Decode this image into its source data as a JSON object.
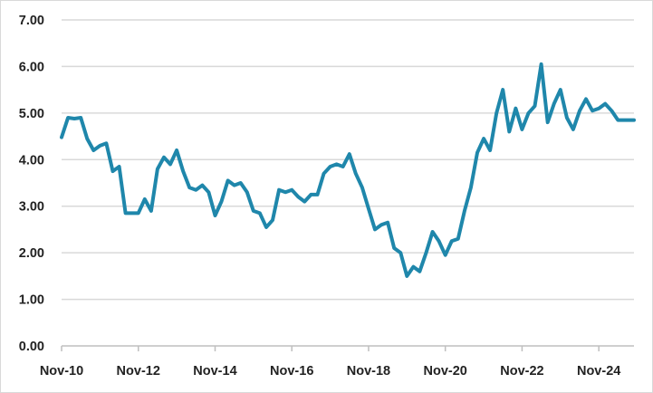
{
  "chart_data": {
    "type": "line",
    "title": "",
    "xlabel": "",
    "ylabel": "",
    "x_tick_labels": [
      "Nov-10",
      "Nov-12",
      "Nov-14",
      "Nov-16",
      "Nov-18",
      "Nov-20",
      "Nov-22",
      "Nov-24"
    ],
    "y_tick_labels": [
      "0.00",
      "1.00",
      "2.00",
      "3.00",
      "4.00",
      "5.00",
      "6.00",
      "7.00"
    ],
    "ylim": [
      0,
      7
    ],
    "xlim": [
      "2010-11",
      "2025-10"
    ],
    "grid": "horizontal",
    "legend": "none",
    "colors": {
      "line": "#1f87ab",
      "grid": "#d9d9d9",
      "axis": "#bfbfbf"
    },
    "series": [
      {
        "x": [
          "2010-11",
          "2011-01",
          "2011-03",
          "2011-05",
          "2011-07",
          "2011-09",
          "2011-11",
          "2012-01",
          "2012-03",
          "2012-05",
          "2012-07",
          "2012-09",
          "2012-11",
          "2013-01",
          "2013-03",
          "2013-05",
          "2013-07",
          "2013-09",
          "2013-11",
          "2014-01",
          "2014-03",
          "2014-05",
          "2014-07",
          "2014-09",
          "2014-11",
          "2015-01",
          "2015-03",
          "2015-05",
          "2015-07",
          "2015-09",
          "2015-11",
          "2016-01",
          "2016-03",
          "2016-05",
          "2016-07",
          "2016-09",
          "2016-11",
          "2017-01",
          "2017-03",
          "2017-05",
          "2017-07",
          "2017-09",
          "2017-11",
          "2018-01",
          "2018-03",
          "2018-05",
          "2018-07",
          "2018-09",
          "2018-11",
          "2019-01",
          "2019-03",
          "2019-05",
          "2019-07",
          "2019-09",
          "2019-11",
          "2020-01",
          "2020-03",
          "2020-05",
          "2020-07",
          "2020-09",
          "2020-11",
          "2021-01",
          "2021-03",
          "2021-05",
          "2021-07",
          "2021-09",
          "2021-11",
          "2022-01",
          "2022-03",
          "2022-05",
          "2022-07",
          "2022-09",
          "2022-11",
          "2023-01",
          "2023-03",
          "2023-05",
          "2023-07",
          "2023-09",
          "2023-11",
          "2024-01",
          "2024-03",
          "2024-05",
          "2024-07",
          "2024-09",
          "2024-11",
          "2025-01",
          "2025-03",
          "2025-05",
          "2025-07",
          "2025-10"
        ],
        "values": [
          4.48,
          4.9,
          4.88,
          4.9,
          4.45,
          4.2,
          4.3,
          4.35,
          3.75,
          3.85,
          2.85,
          2.85,
          2.85,
          3.15,
          2.9,
          3.8,
          4.05,
          3.9,
          4.2,
          3.75,
          3.4,
          3.35,
          3.45,
          3.3,
          2.8,
          3.1,
          3.55,
          3.45,
          3.5,
          3.3,
          2.9,
          2.85,
          2.55,
          2.7,
          3.35,
          3.3,
          3.35,
          3.2,
          3.1,
          3.25,
          3.25,
          3.7,
          3.85,
          3.9,
          3.85,
          4.12,
          3.7,
          3.4,
          2.95,
          2.5,
          2.6,
          2.65,
          2.1,
          2.0,
          1.5,
          1.7,
          1.6,
          2.0,
          2.45,
          2.25,
          1.95,
          2.25,
          2.3,
          2.9,
          3.4,
          4.15,
          4.45,
          4.2,
          5.0,
          5.5,
          4.6,
          5.1,
          4.65,
          5.0,
          5.15,
          6.05,
          4.8,
          5.2,
          5.5,
          4.9,
          4.65,
          5.05,
          5.3,
          5.05,
          5.1,
          5.2,
          5.05,
          4.85,
          4.85,
          4.85
        ]
      }
    ]
  }
}
